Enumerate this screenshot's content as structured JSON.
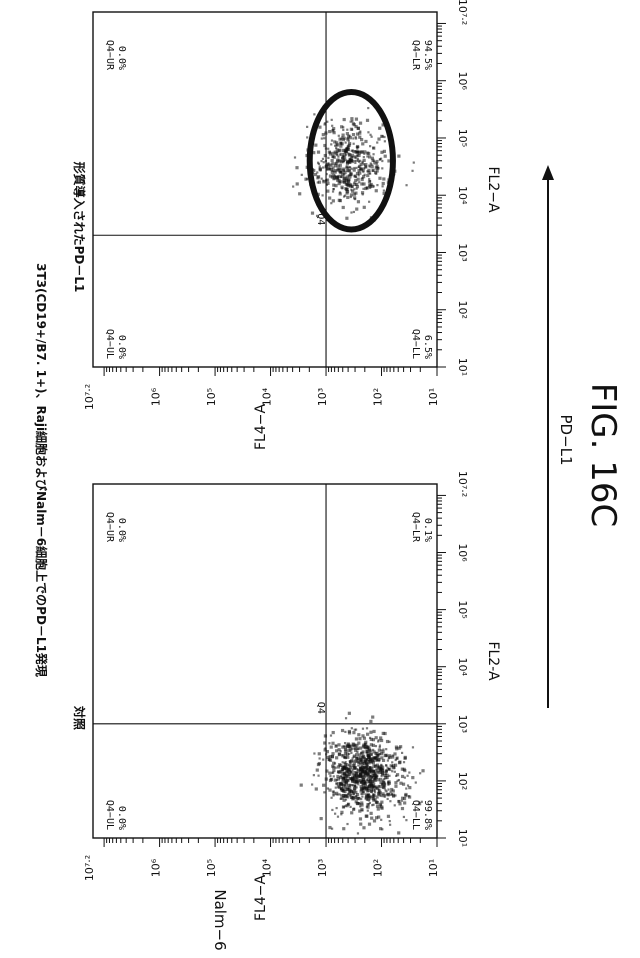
{
  "figure_title": "3T3(CD19+/B7. 1+)、Raji細胞およびNalm－6細胞上でのPD－L1発現",
  "figure_label": "FIG. 16C",
  "side_label": "Nalm−6",
  "arrow_label": "PD−L1",
  "colors": {
    "ink": "#111111",
    "paper": "#ffffff"
  },
  "chart_data": [
    {
      "type": "scatter",
      "title": "対照",
      "xlabel": "FL2-A",
      "ylabel": "FL4−A",
      "xscale": "log",
      "yscale": "log",
      "xlim": [
        10,
        15848932
      ],
      "ylim": [
        10,
        15848932
      ],
      "x_tick_labels": [
        "10¹",
        "10²",
        "10³",
        "10⁴",
        "10⁵",
        "10⁶",
        "10⁷·²"
      ],
      "y_tick_labels": [
        "10¹",
        "10²",
        "10³",
        "10⁴",
        "10⁵",
        "10⁶",
        "10⁷·²"
      ],
      "gate_name": "Q4",
      "gate": {
        "x": 1000,
        "y": 1000
      },
      "quadrants": [
        {
          "name": "Q4−UL",
          "percent": "0.0%"
        },
        {
          "name": "Q4−UR",
          "percent": "0.0%"
        },
        {
          "name": "Q4−LL",
          "percent": "99.8%"
        },
        {
          "name": "Q4−LR",
          "percent": "0.1%"
        }
      ],
      "population": {
        "center": [
          120,
          200
        ],
        "spread_decades": [
          0.35,
          0.35
        ],
        "count": 900
      }
    },
    {
      "type": "scatter",
      "title": "形質導入されたPD－L1",
      "xlabel": "FL2−A",
      "ylabel": "FL4−A",
      "xscale": "log",
      "yscale": "log",
      "xlim": [
        10,
        15848932
      ],
      "ylim": [
        10,
        15848932
      ],
      "x_tick_labels": [
        "10¹",
        "10²",
        "10³",
        "10⁴",
        "10⁵",
        "10⁶",
        "10⁷·²"
      ],
      "y_tick_labels": [
        "10¹",
        "10²",
        "10³",
        "10⁴",
        "10⁵",
        "10⁶",
        "10⁷·²"
      ],
      "gate_name": "Q4",
      "gate": {
        "x": 2000,
        "y": 1000
      },
      "quadrants": [
        {
          "name": "Q4−UL",
          "percent": "0.0%"
        },
        {
          "name": "Q4−UR",
          "percent": "0.0%"
        },
        {
          "name": "Q4−LL",
          "percent": "6.5%"
        },
        {
          "name": "Q4−LR",
          "percent": "94.5%"
        }
      ],
      "population": {
        "center": [
          35000,
          400
        ],
        "spread_decades": [
          0.35,
          0.35
        ],
        "count": 500
      },
      "ellipse_gate": {
        "center": [
          40000,
          350
        ],
        "radii_decades": [
          1.2,
          0.75
        ]
      }
    }
  ]
}
